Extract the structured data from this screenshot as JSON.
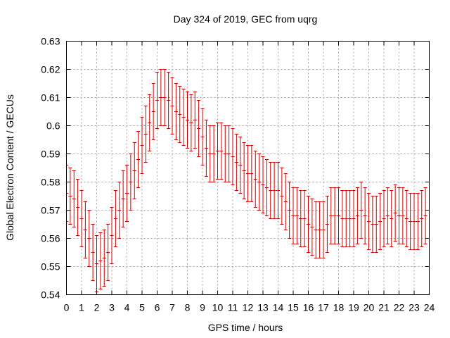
{
  "chart_data": {
    "type": "scatter",
    "title": "Day 324 of 2019, GEC from uqrg",
    "xlabel": "GPS time / hours",
    "ylabel": "Global Electron Content / GECUs",
    "xlim": [
      0,
      24
    ],
    "ylim": [
      0.54,
      0.63
    ],
    "xticks": [
      0,
      1,
      2,
      3,
      4,
      5,
      6,
      7,
      8,
      9,
      10,
      11,
      12,
      13,
      14,
      15,
      16,
      17,
      18,
      19,
      20,
      21,
      22,
      23,
      24
    ],
    "yticks": [
      0.54,
      0.55,
      0.56,
      0.57,
      0.58,
      0.59,
      0.6,
      0.61,
      0.62,
      0.63
    ],
    "ytick_labels": [
      "0.54",
      "0.55",
      "0.56",
      "0.57",
      "0.58",
      "0.59",
      "0.6",
      "0.61",
      "0.62",
      "0.63"
    ],
    "grid": true,
    "color": "#cc0000",
    "series": [
      {
        "name": "GEC",
        "x": [
          0,
          0.25,
          0.5,
          0.75,
          1,
          1.25,
          1.5,
          1.75,
          2,
          2.25,
          2.5,
          2.75,
          3,
          3.25,
          3.5,
          3.75,
          4,
          4.25,
          4.5,
          4.75,
          5,
          5.25,
          5.5,
          5.75,
          6,
          6.25,
          6.5,
          6.75,
          7,
          7.25,
          7.5,
          7.75,
          8,
          8.25,
          8.5,
          8.75,
          9,
          9.25,
          9.5,
          9.75,
          10,
          10.25,
          10.5,
          10.75,
          11,
          11.25,
          11.5,
          11.75,
          12,
          12.25,
          12.5,
          12.75,
          13,
          13.25,
          13.5,
          13.75,
          14,
          14.25,
          14.5,
          14.75,
          15,
          15.25,
          15.5,
          15.75,
          16,
          16.25,
          16.5,
          16.75,
          17,
          17.25,
          17.5,
          17.75,
          18,
          18.25,
          18.5,
          18.75,
          19,
          19.25,
          19.5,
          19.75,
          20,
          20.25,
          20.5,
          20.75,
          21,
          21.25,
          21.5,
          21.75,
          22,
          22.25,
          22.5,
          22.75,
          23,
          23.25,
          23.5,
          23.75,
          24
        ],
        "y": [
          0.576,
          0.575,
          0.574,
          0.571,
          0.567,
          0.563,
          0.56,
          0.555,
          0.551,
          0.552,
          0.553,
          0.555,
          0.561,
          0.567,
          0.57,
          0.574,
          0.576,
          0.58,
          0.584,
          0.588,
          0.593,
          0.597,
          0.601,
          0.605,
          0.609,
          0.61,
          0.61,
          0.609,
          0.607,
          0.605,
          0.604,
          0.603,
          0.602,
          0.601,
          0.602,
          0.599,
          0.596,
          0.592,
          0.59,
          0.59,
          0.591,
          0.591,
          0.59,
          0.59,
          0.589,
          0.587,
          0.586,
          0.584,
          0.583,
          0.583,
          0.581,
          0.58,
          0.579,
          0.578,
          0.577,
          0.577,
          0.577,
          0.575,
          0.573,
          0.57,
          0.568,
          0.568,
          0.567,
          0.567,
          0.565,
          0.564,
          0.563,
          0.563,
          0.563,
          0.565,
          0.568,
          0.568,
          0.568,
          0.567,
          0.567,
          0.567,
          0.567,
          0.568,
          0.57,
          0.568,
          0.566,
          0.565,
          0.565,
          0.566,
          0.567,
          0.568,
          0.567,
          0.569,
          0.568,
          0.568,
          0.567,
          0.566,
          0.566,
          0.566,
          0.567,
          0.568,
          0.57
        ],
        "err": [
          0.01,
          0.01,
          0.01,
          0.01,
          0.01,
          0.01,
          0.01,
          0.01,
          0.01,
          0.01,
          0.01,
          0.01,
          0.01,
          0.01,
          0.01,
          0.01,
          0.01,
          0.01,
          0.01,
          0.01,
          0.01,
          0.01,
          0.01,
          0.01,
          0.01,
          0.01,
          0.01,
          0.01,
          0.01,
          0.01,
          0.01,
          0.01,
          0.01,
          0.01,
          0.01,
          0.01,
          0.01,
          0.01,
          0.01,
          0.01,
          0.01,
          0.01,
          0.01,
          0.01,
          0.01,
          0.01,
          0.01,
          0.01,
          0.01,
          0.01,
          0.01,
          0.01,
          0.01,
          0.01,
          0.01,
          0.01,
          0.01,
          0.01,
          0.01,
          0.01,
          0.01,
          0.01,
          0.01,
          0.01,
          0.01,
          0.01,
          0.01,
          0.01,
          0.01,
          0.01,
          0.01,
          0.01,
          0.01,
          0.01,
          0.01,
          0.01,
          0.01,
          0.01,
          0.01,
          0.01,
          0.01,
          0.01,
          0.01,
          0.01,
          0.01,
          0.01,
          0.01,
          0.01,
          0.01,
          0.01,
          0.01,
          0.01,
          0.01,
          0.01,
          0.01,
          0.01,
          0.01
        ]
      }
    ]
  }
}
